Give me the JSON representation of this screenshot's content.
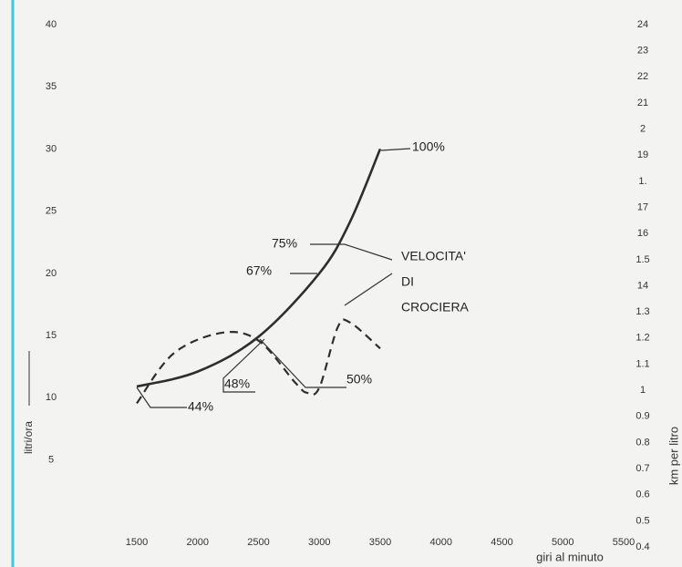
{
  "chart_data": {
    "type": "line",
    "x_label": "giri al minuto",
    "y_label": "litri/ora",
    "y2_label": "km per litro",
    "xlim": [
      1500,
      5500
    ],
    "xticks": [
      1500,
      2000,
      2500,
      3000,
      3500,
      4000,
      4500,
      5000,
      5500
    ],
    "ylim": [
      -2,
      40
    ],
    "yticks": [
      5,
      10,
      15,
      20,
      25,
      30,
      35,
      40
    ],
    "y2lim": [
      0.4,
      2.4
    ],
    "y2ticks": [
      {
        "value": 2.4,
        "label": "24"
      },
      {
        "value": 2.3,
        "label": "23"
      },
      {
        "value": 2.2,
        "label": "22"
      },
      {
        "value": 2.1,
        "label": "21"
      },
      2,
      {
        "value": 1.9,
        "label": "19"
      },
      {
        "value": 1.8,
        "label": "1."
      },
      {
        "value": 1.7,
        "label": "17"
      },
      {
        "value": 1.6,
        "label": "16"
      },
      1.5,
      {
        "value": 1.4,
        "label": "14"
      },
      1.3,
      1.2,
      1.1,
      1,
      0.9,
      0.8,
      0.7,
      0.6,
      0.5,
      0.4
    ],
    "series": [
      {
        "color": "#2e2e2e",
        "dash": false,
        "x": [
          1500,
          2000,
          2500,
          3000,
          3250,
          3500
        ],
        "values": [
          10.9,
          12.1,
          14.9,
          20,
          24.1,
          30
        ]
      },
      {
        "color": "#2e2e2e",
        "dash": true,
        "axis": "y2",
        "x": [
          1500,
          1800,
          2200,
          2500,
          2800,
          2900,
          3000,
          3150,
          3250,
          3500
        ],
        "values": [
          0.95,
          1.14,
          1.22,
          1.19,
          1.03,
          0.99,
          1.01,
          1.24,
          1.26,
          1.16
        ]
      }
    ],
    "annotations": [
      "100%",
      "75%",
      "67%",
      "48%",
      "44%",
      "50%",
      "VELOCITA'",
      "DI",
      "CROCIERA"
    ]
  }
}
